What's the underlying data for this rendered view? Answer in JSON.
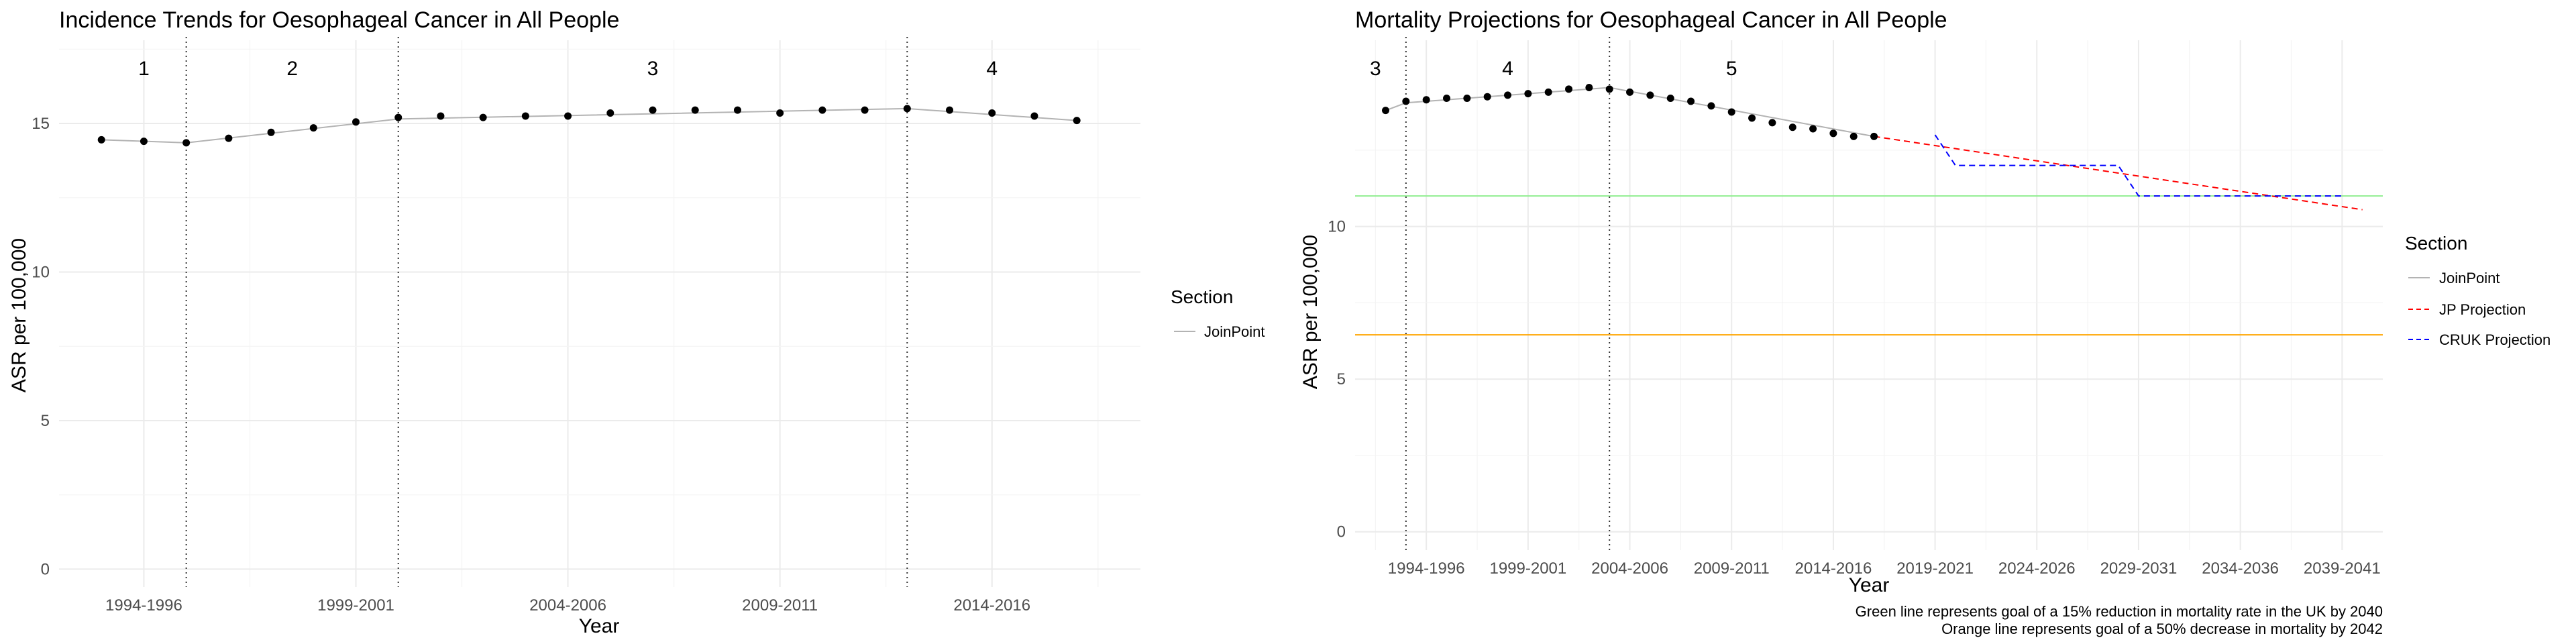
{
  "chart_data": [
    {
      "type": "line",
      "title": "Incidence Trends for Oesophageal Cancer in All People",
      "xlabel": "Year",
      "ylabel": "ASR per 100,000",
      "xlim": [
        1993,
        2018.5
      ],
      "ylim": [
        -0.6,
        17.8
      ],
      "x_tick_values": [
        1995,
        2000,
        2005,
        2010,
        2015
      ],
      "x_tick_labels": [
        "1994-1996",
        "1999-2001",
        "2004-2006",
        "2009-2011",
        "2014-2016"
      ],
      "y_ticks": [
        0,
        5,
        10,
        15
      ],
      "breakpoints": [
        1996,
        2001,
        2013
      ],
      "segment_labels": [
        {
          "label": "1",
          "x": 1995
        },
        {
          "label": "2",
          "x": 1998.5
        },
        {
          "label": "3",
          "x": 2007
        },
        {
          "label": "4",
          "x": 2015
        }
      ],
      "legend": {
        "title": "Section",
        "entries": [
          {
            "label": "JoinPoint",
            "color": "#b3b3b3",
            "style": "solid"
          }
        ]
      },
      "points": {
        "x": [
          1994,
          1995,
          1996,
          1997,
          1998,
          1999,
          2000,
          2001,
          2002,
          2003,
          2004,
          2005,
          2006,
          2007,
          2008,
          2009,
          2010,
          2011,
          2012,
          2013,
          2014,
          2015,
          2016,
          2017
        ],
        "y": [
          14.45,
          14.4,
          14.35,
          14.5,
          14.7,
          14.85,
          15.05,
          15.2,
          15.25,
          15.2,
          15.25,
          15.25,
          15.35,
          15.45,
          15.45,
          15.45,
          15.35,
          15.45,
          15.45,
          15.5,
          15.45,
          15.35,
          15.25,
          15.1
        ]
      },
      "series": [
        {
          "name": "JoinPoint",
          "x": [
            1994,
            1996,
            2001,
            2013,
            2017
          ],
          "y": [
            14.45,
            14.35,
            15.15,
            15.5,
            15.1
          ],
          "color": "#b3b3b3"
        }
      ]
    },
    {
      "type": "line",
      "title": "Mortality Projections for Oesophageal Cancer in All People",
      "xlabel": "Year",
      "ylabel": "ASR per 100,000",
      "xlim": [
        1991.5,
        2042
      ],
      "ylim": [
        -0.6,
        16.1
      ],
      "x_tick_values": [
        1995,
        2000,
        2005,
        2010,
        2015,
        2020,
        2025,
        2030,
        2035,
        2040
      ],
      "x_tick_labels": [
        "1994-1996",
        "1999-2001",
        "2004-2006",
        "2009-2011",
        "2014-2016",
        "2019-2021",
        "2024-2026",
        "2029-2031",
        "2034-2036",
        "2039-2041"
      ],
      "y_ticks": [
        0,
        5,
        10
      ],
      "breakpoints": [
        1994,
        2004
      ],
      "segment_labels": [
        {
          "label": "3",
          "x": 1992.5
        },
        {
          "label": "4",
          "x": 1999
        },
        {
          "label": "5",
          "x": 2010
        }
      ],
      "reference_lines": [
        {
          "y": 11,
          "color": "#90ee90"
        },
        {
          "y": 6.45,
          "color": "#ffa500"
        }
      ],
      "legend": {
        "title": "Section",
        "entries": [
          {
            "label": "JoinPoint",
            "color": "#b3b3b3",
            "style": "solid"
          },
          {
            "label": "JP Projection",
            "color": "#ff0000",
            "style": "dashed"
          },
          {
            "label": "CRUK Projection",
            "color": "#0000ff",
            "style": "dashed"
          }
        ]
      },
      "points": {
        "x": [
          1993,
          1994,
          1995,
          1996,
          1997,
          1998,
          1999,
          2000,
          2001,
          2002,
          2003,
          2004,
          2005,
          2006,
          2007,
          2008,
          2009,
          2010,
          2011,
          2012,
          2013,
          2014,
          2015,
          2016,
          2017
        ],
        "y": [
          13.8,
          14.1,
          14.15,
          14.2,
          14.2,
          14.25,
          14.3,
          14.35,
          14.4,
          14.5,
          14.55,
          14.5,
          14.4,
          14.3,
          14.2,
          14.1,
          13.95,
          13.75,
          13.55,
          13.4,
          13.25,
          13.2,
          13.05,
          12.95,
          12.95
        ]
      },
      "series": [
        {
          "name": "JoinPoint",
          "x": [
            1993,
            1994,
            2004,
            2017
          ],
          "y": [
            13.8,
            14.05,
            14.55,
            12.95
          ],
          "color": "#b3b3b3",
          "dash": false
        },
        {
          "name": "JP Projection",
          "x": [
            2017,
            2041
          ],
          "y": [
            12.95,
            10.55
          ],
          "color": "#ff0000",
          "dash": true
        },
        {
          "name": "CRUK Projection",
          "x": [
            2020,
            2021,
            2029,
            2030,
            2040
          ],
          "y": [
            13.0,
            12.0,
            12.0,
            11.0,
            11.0
          ],
          "color": "#0000ff",
          "dash": true
        }
      ]
    }
  ],
  "captions": [
    "Green line represents goal of a 15% reduction in mortality rate in the UK by 2040",
    "Orange line represents goal of a 50% decrease in mortality by 2042"
  ]
}
